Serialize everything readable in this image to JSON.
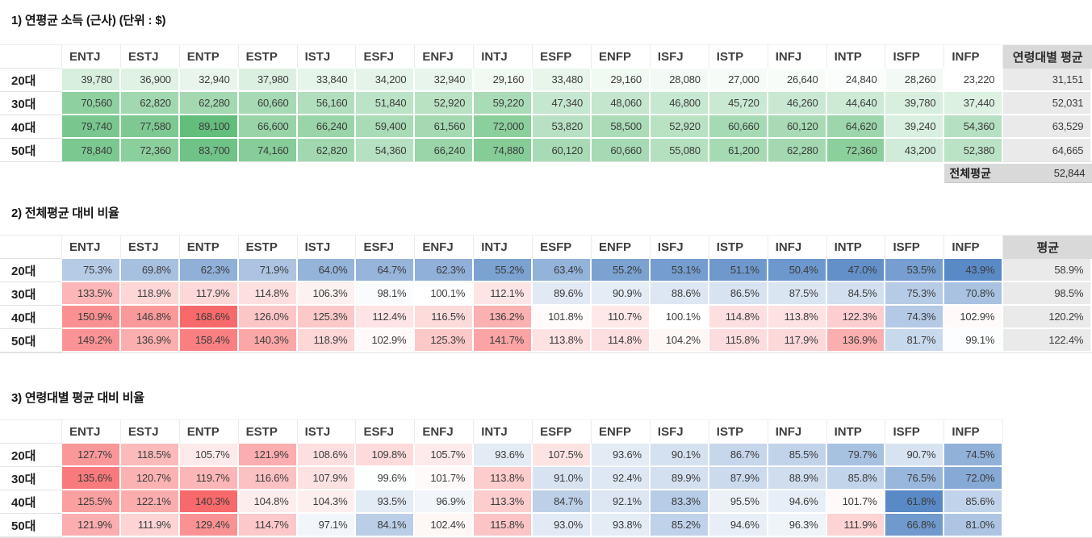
{
  "palette": {
    "green_max": "#63be7b",
    "blue_min": "#5a8ac6",
    "red_max": "#f8696b",
    "neutral_mid": "#ffffff",
    "avg_header_bg": "#d9d9d9",
    "avg_cell_bg": "#eaeaea"
  },
  "chart_data": [
    {
      "type": "heatmap-table",
      "title": "1) 연평균 소득 (근사) (단위 : $)",
      "value_format": "number",
      "columns": [
        "ENTJ",
        "ESTJ",
        "ENTP",
        "ESTP",
        "ISTJ",
        "ESFJ",
        "ENFJ",
        "INTJ",
        "ESFP",
        "ENFP",
        "ISFJ",
        "ISTP",
        "INFJ",
        "INTP",
        "ISFP",
        "INFP"
      ],
      "avg_column": "연령대별 평균",
      "rows": [
        {
          "label": "20대",
          "values": [
            39780,
            36900,
            32940,
            37980,
            33840,
            34200,
            32940,
            29160,
            33480,
            29160,
            28080,
            27000,
            26640,
            24840,
            28260,
            23220
          ],
          "avg": 31151
        },
        {
          "label": "30대",
          "values": [
            70560,
            62820,
            62280,
            60660,
            56160,
            51840,
            52920,
            59220,
            47340,
            48060,
            46800,
            45720,
            46260,
            44640,
            39780,
            37440
          ],
          "avg": 52031
        },
        {
          "label": "40대",
          "values": [
            79740,
            77580,
            89100,
            66600,
            66240,
            59400,
            61560,
            72000,
            53820,
            58500,
            52920,
            60660,
            60120,
            64620,
            39240,
            54360
          ],
          "avg": 63529
        },
        {
          "label": "50대",
          "values": [
            78840,
            72360,
            83700,
            74160,
            62820,
            54360,
            66240,
            74880,
            60120,
            60660,
            55080,
            61200,
            62280,
            72360,
            43200,
            52380
          ],
          "avg": 64665
        }
      ],
      "footer": {
        "label": "전체평균",
        "value": 52844
      },
      "colorscale": {
        "kind": "sequential",
        "min": 23220,
        "max": 89100,
        "min_color": "#ffffff",
        "max_color": "#63be7b"
      }
    },
    {
      "type": "heatmap-table",
      "title": "2) 전체평균 대비 비율",
      "value_format": "percent",
      "columns": [
        "ENTJ",
        "ESTJ",
        "ENTP",
        "ESTP",
        "ISTJ",
        "ESFJ",
        "ENFJ",
        "INTJ",
        "ESFP",
        "ENFP",
        "ISFJ",
        "ISTP",
        "INFJ",
        "INTP",
        "ISFP",
        "INFP"
      ],
      "avg_column": "평균",
      "rows": [
        {
          "label": "20대",
          "values": [
            75.3,
            69.8,
            62.3,
            71.9,
            64.0,
            64.7,
            62.3,
            55.2,
            63.4,
            55.2,
            53.1,
            51.1,
            50.4,
            47.0,
            53.5,
            43.9
          ],
          "avg": 58.9
        },
        {
          "label": "30대",
          "values": [
            133.5,
            118.9,
            117.9,
            114.8,
            106.3,
            98.1,
            100.1,
            112.1,
            89.6,
            90.9,
            88.6,
            86.5,
            87.5,
            84.5,
            75.3,
            70.8
          ],
          "avg": 98.5
        },
        {
          "label": "40대",
          "values": [
            150.9,
            146.8,
            168.6,
            126.0,
            125.3,
            112.4,
            116.5,
            136.2,
            101.8,
            110.7,
            100.1,
            114.8,
            113.8,
            122.3,
            74.3,
            102.9
          ],
          "avg": 120.2
        },
        {
          "label": "50대",
          "values": [
            149.2,
            136.9,
            158.4,
            140.3,
            118.9,
            102.9,
            125.3,
            141.7,
            113.8,
            114.8,
            104.2,
            115.8,
            117.9,
            136.9,
            81.7,
            99.1
          ],
          "avg": 122.4
        }
      ],
      "colorscale": {
        "kind": "diverging",
        "min": 43.9,
        "mid": 100,
        "max": 168.6,
        "min_color": "#5a8ac6",
        "mid_color": "#ffffff",
        "max_color": "#f8696b"
      }
    },
    {
      "type": "heatmap-table",
      "title": "3) 연령대별 평균 대비 비율",
      "value_format": "percent",
      "columns": [
        "ENTJ",
        "ESTJ",
        "ENTP",
        "ESTP",
        "ISTJ",
        "ESFJ",
        "ENFJ",
        "INTJ",
        "ESFP",
        "ENFP",
        "ISFJ",
        "ISTP",
        "INFJ",
        "INTP",
        "ISFP",
        "INFP"
      ],
      "rows": [
        {
          "label": "20대",
          "values": [
            127.7,
            118.5,
            105.7,
            121.9,
            108.6,
            109.8,
            105.7,
            93.6,
            107.5,
            93.6,
            90.1,
            86.7,
            85.5,
            79.7,
            90.7,
            74.5
          ]
        },
        {
          "label": "30대",
          "values": [
            135.6,
            120.7,
            119.7,
            116.6,
            107.9,
            99.6,
            101.7,
            113.8,
            91.0,
            92.4,
            89.9,
            87.9,
            88.9,
            85.8,
            76.5,
            72.0
          ]
        },
        {
          "label": "40대",
          "values": [
            125.5,
            122.1,
            140.3,
            104.8,
            104.3,
            93.5,
            96.9,
            113.3,
            84.7,
            92.1,
            83.3,
            95.5,
            94.6,
            101.7,
            61.8,
            85.6
          ]
        },
        {
          "label": "50대",
          "values": [
            121.9,
            111.9,
            129.4,
            114.7,
            97.1,
            84.1,
            102.4,
            115.8,
            93.0,
            93.8,
            85.2,
            94.6,
            96.3,
            111.9,
            66.8,
            81.0
          ]
        }
      ],
      "colorscale": {
        "kind": "diverging",
        "min": 61.8,
        "mid": 100,
        "max": 140.3,
        "min_color": "#5a8ac6",
        "mid_color": "#ffffff",
        "max_color": "#f8696b"
      }
    }
  ]
}
